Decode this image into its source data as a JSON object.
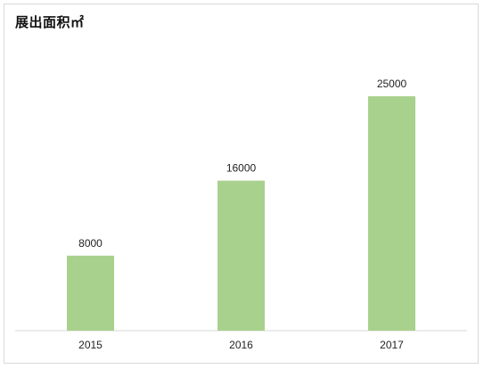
{
  "chart_data": {
    "type": "bar",
    "title": "展出面积㎡",
    "categories": [
      "2015",
      "2016",
      "2017"
    ],
    "values": [
      8000,
      16000,
      25000
    ],
    "data_labels": [
      "8000",
      "16000",
      "25000"
    ],
    "xlabel": "",
    "ylabel": "",
    "ylim": [
      0,
      27000
    ],
    "grid": false,
    "legend": "none",
    "bar_color": "#a9d18e",
    "axis_color": "#d9d9d9"
  }
}
